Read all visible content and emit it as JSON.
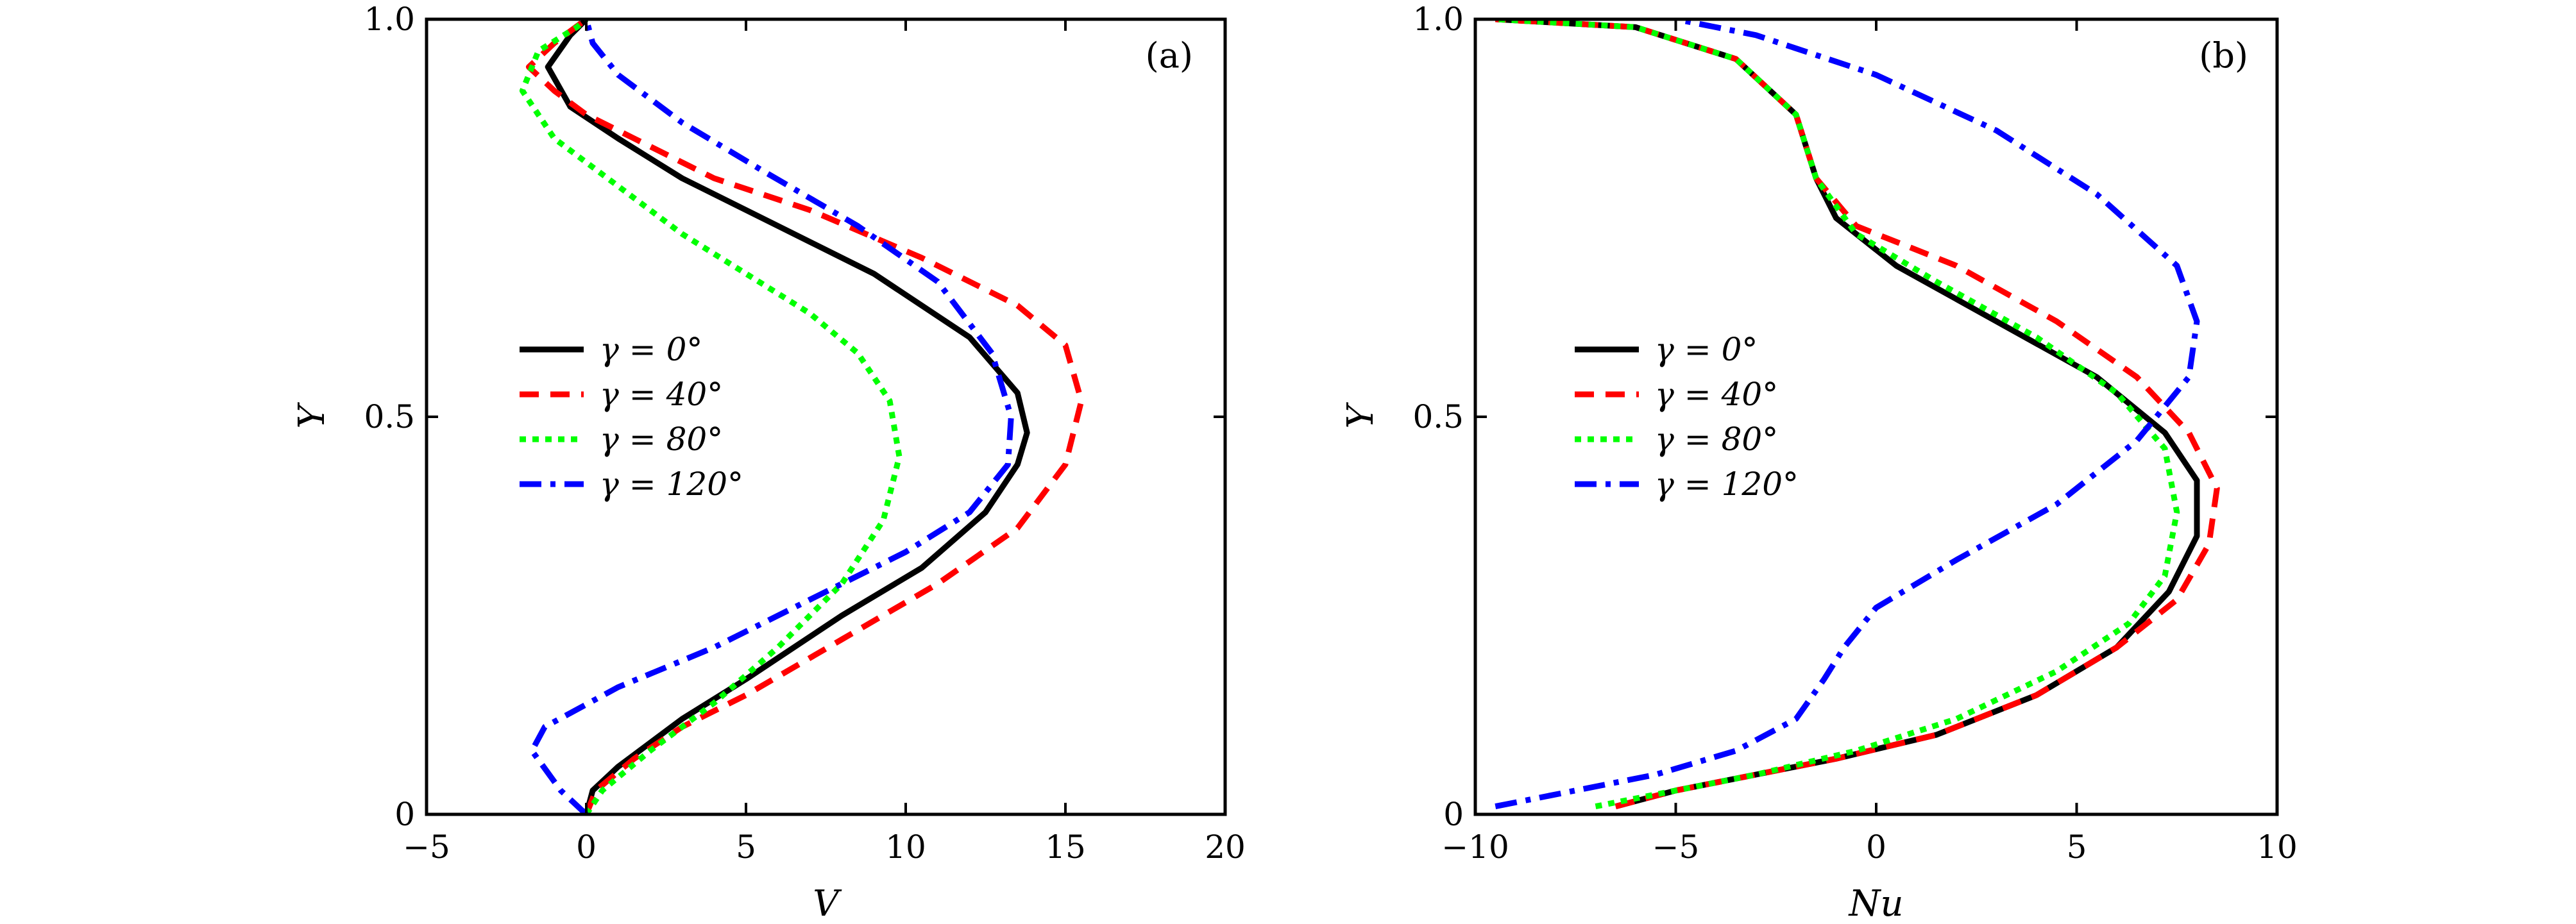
{
  "chart_data": [
    {
      "type": "line",
      "panel_label": "(a)",
      "xlabel": "V",
      "ylabel": "Y",
      "xlim": [
        -5,
        20
      ],
      "ylim": [
        0,
        1
      ],
      "xticks": [
        -5,
        0,
        5,
        10,
        15,
        20
      ],
      "xtick_labels": [
        "−5",
        "0",
        "5",
        "10",
        "15",
        "20"
      ],
      "yticks": [
        0,
        0.5,
        1.0
      ],
      "ytick_labels": [
        "0",
        "0.5",
        "1.0"
      ],
      "legend_position": "center-left",
      "series": [
        {
          "name": "γ = 0°",
          "color": "#000000",
          "style": "solid",
          "points": [
            [
              0,
              0
            ],
            [
              0.2,
              0.03
            ],
            [
              1,
              0.06
            ],
            [
              3,
              0.12
            ],
            [
              5,
              0.17
            ],
            [
              8,
              0.25
            ],
            [
              10.5,
              0.31
            ],
            [
              12.5,
              0.38
            ],
            [
              13.5,
              0.44
            ],
            [
              13.8,
              0.48
            ],
            [
              13.5,
              0.53
            ],
            [
              12,
              0.6
            ],
            [
              9,
              0.68
            ],
            [
              6,
              0.74
            ],
            [
              3,
              0.8
            ],
            [
              1,
              0.85
            ],
            [
              -0.5,
              0.89
            ],
            [
              -1.2,
              0.94
            ],
            [
              -0.5,
              0.98
            ],
            [
              0,
              1.0
            ]
          ]
        },
        {
          "name": "γ = 40°",
          "color": "#ff0000",
          "style": "dashed",
          "points": [
            [
              0,
              0
            ],
            [
              0.3,
              0.03
            ],
            [
              1.5,
              0.07
            ],
            [
              3,
              0.11
            ],
            [
              5,
              0.15
            ],
            [
              8,
              0.22
            ],
            [
              11,
              0.29
            ],
            [
              13.5,
              0.36
            ],
            [
              15,
              0.44
            ],
            [
              15.5,
              0.52
            ],
            [
              15,
              0.59
            ],
            [
              13.5,
              0.64
            ],
            [
              10.5,
              0.7
            ],
            [
              7,
              0.76
            ],
            [
              4,
              0.8
            ],
            [
              1.5,
              0.85
            ],
            [
              0,
              0.88
            ],
            [
              -1,
              0.91
            ],
            [
              -1.8,
              0.94
            ],
            [
              -1,
              0.97
            ],
            [
              0,
              1.0
            ]
          ]
        },
        {
          "name": "γ = 80°",
          "color": "#00ff00",
          "style": "dotted",
          "points": [
            [
              0,
              0
            ],
            [
              0.5,
              0.03
            ],
            [
              2,
              0.08
            ],
            [
              4,
              0.14
            ],
            [
              6,
              0.21
            ],
            [
              8,
              0.29
            ],
            [
              9.3,
              0.37
            ],
            [
              9.8,
              0.45
            ],
            [
              9.5,
              0.52
            ],
            [
              8.5,
              0.58
            ],
            [
              7,
              0.63
            ],
            [
              5,
              0.68
            ],
            [
              3,
              0.73
            ],
            [
              1,
              0.79
            ],
            [
              -1,
              0.85
            ],
            [
              -2,
              0.91
            ],
            [
              -1.5,
              0.96
            ],
            [
              -0.3,
              0.99
            ],
            [
              0,
              1.0
            ]
          ]
        },
        {
          "name": "γ = 120°",
          "color": "#0000ff",
          "style": "dashdot",
          "points": [
            [
              0,
              0
            ],
            [
              -0.8,
              0.03
            ],
            [
              -1.7,
              0.08
            ],
            [
              -1.3,
              0.11
            ],
            [
              1,
              0.16
            ],
            [
              4,
              0.21
            ],
            [
              7,
              0.27
            ],
            [
              10,
              0.33
            ],
            [
              12,
              0.38
            ],
            [
              13.2,
              0.44
            ],
            [
              13.3,
              0.5
            ],
            [
              12.7,
              0.58
            ],
            [
              11,
              0.67
            ],
            [
              8.5,
              0.74
            ],
            [
              5.5,
              0.81
            ],
            [
              3,
              0.87
            ],
            [
              1,
              0.93
            ],
            [
              0.2,
              0.97
            ],
            [
              0,
              1.0
            ]
          ]
        }
      ]
    },
    {
      "type": "line",
      "panel_label": "(b)",
      "xlabel": "Nu",
      "ylabel": "Y",
      "xlim": [
        -10,
        10
      ],
      "ylim": [
        0,
        1
      ],
      "xticks": [
        -10,
        -5,
        0,
        5,
        10
      ],
      "xtick_labels": [
        "−10",
        "−5",
        "0",
        "5",
        "10"
      ],
      "yticks": [
        0,
        0.5,
        1.0
      ],
      "ytick_labels": [
        "0",
        "0.5",
        "1.0"
      ],
      "legend_position": "center-left",
      "series": [
        {
          "name": "γ = 0°",
          "color": "#000000",
          "style": "solid",
          "points": [
            [
              -6.5,
              0.01
            ],
            [
              -5,
              0.03
            ],
            [
              -3,
              0.05
            ],
            [
              -1,
              0.07
            ],
            [
              1.5,
              0.1
            ],
            [
              4,
              0.15
            ],
            [
              6,
              0.21
            ],
            [
              7.3,
              0.28
            ],
            [
              8,
              0.35
            ],
            [
              8,
              0.42
            ],
            [
              7.2,
              0.48
            ],
            [
              5.5,
              0.55
            ],
            [
              3,
              0.62
            ],
            [
              0.5,
              0.69
            ],
            [
              -1,
              0.75
            ],
            [
              -1.5,
              0.8
            ],
            [
              -2,
              0.88
            ],
            [
              -3.5,
              0.95
            ],
            [
              -6,
              0.99
            ],
            [
              -9.5,
              1.0
            ]
          ]
        },
        {
          "name": "γ = 40°",
          "color": "#ff0000",
          "style": "dashed",
          "points": [
            [
              -6.5,
              0.01
            ],
            [
              -5,
              0.03
            ],
            [
              -3,
              0.05
            ],
            [
              -1,
              0.07
            ],
            [
              1.5,
              0.1
            ],
            [
              4,
              0.15
            ],
            [
              6,
              0.21
            ],
            [
              7.5,
              0.27
            ],
            [
              8.3,
              0.34
            ],
            [
              8.5,
              0.41
            ],
            [
              7.8,
              0.48
            ],
            [
              6.5,
              0.55
            ],
            [
              4.5,
              0.62
            ],
            [
              2,
              0.69
            ],
            [
              -0.5,
              0.74
            ],
            [
              -1.5,
              0.8
            ],
            [
              -2,
              0.88
            ],
            [
              -3.5,
              0.95
            ],
            [
              -6,
              0.99
            ],
            [
              -9.5,
              1.0
            ]
          ]
        },
        {
          "name": "γ = 80°",
          "color": "#00ff00",
          "style": "dotted",
          "points": [
            [
              -7,
              0.01
            ],
            [
              -5,
              0.03
            ],
            [
              -3,
              0.05
            ],
            [
              -0.5,
              0.08
            ],
            [
              2,
              0.12
            ],
            [
              4.5,
              0.18
            ],
            [
              6.3,
              0.24
            ],
            [
              7.2,
              0.3
            ],
            [
              7.5,
              0.38
            ],
            [
              7.2,
              0.46
            ],
            [
              6,
              0.53
            ],
            [
              4,
              0.6
            ],
            [
              1.5,
              0.67
            ],
            [
              -0.5,
              0.73
            ],
            [
              -1.5,
              0.8
            ],
            [
              -2,
              0.88
            ],
            [
              -3.5,
              0.95
            ],
            [
              -6,
              0.99
            ],
            [
              -9.5,
              1.0
            ]
          ]
        },
        {
          "name": "γ = 120°",
          "color": "#0000ff",
          "style": "dashdot",
          "points": [
            [
              -9.5,
              0.01
            ],
            [
              -7.5,
              0.03
            ],
            [
              -5.5,
              0.05
            ],
            [
              -3.5,
              0.08
            ],
            [
              -2,
              0.12
            ],
            [
              -1.3,
              0.17
            ],
            [
              -0.8,
              0.21
            ],
            [
              0,
              0.26
            ],
            [
              2,
              0.32
            ],
            [
              4.5,
              0.39
            ],
            [
              6.5,
              0.47
            ],
            [
              7.8,
              0.55
            ],
            [
              8,
              0.62
            ],
            [
              7.5,
              0.69
            ],
            [
              5.5,
              0.78
            ],
            [
              3,
              0.86
            ],
            [
              0,
              0.93
            ],
            [
              -3,
              0.98
            ],
            [
              -5,
              1.0
            ]
          ]
        }
      ]
    }
  ]
}
